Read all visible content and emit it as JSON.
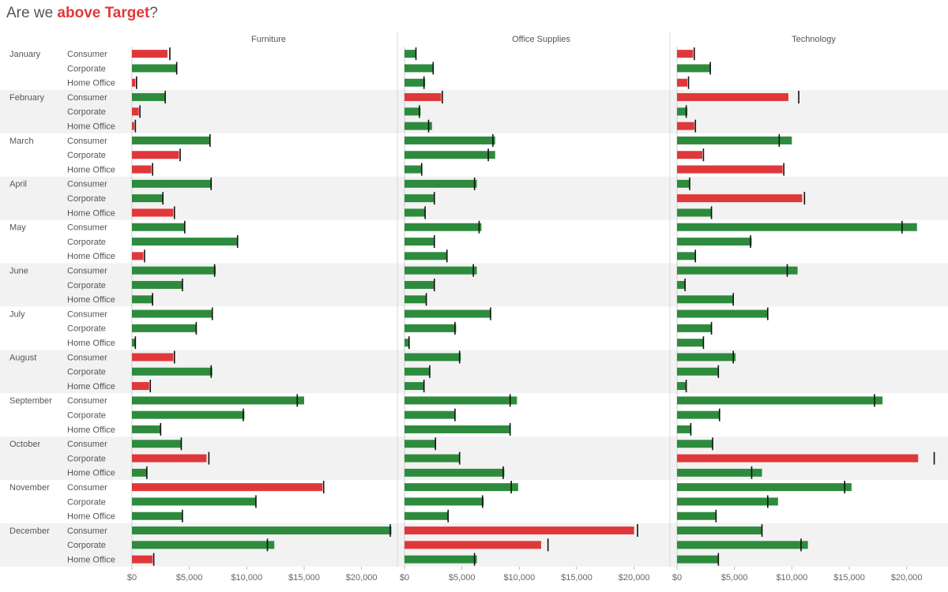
{
  "title": {
    "prefix": "Are we ",
    "highlight": "above Target",
    "suffix": "?"
  },
  "colors": {
    "above": "#2e8b3e",
    "below": "#e0383a",
    "target": "#111111",
    "band": "#f2f2f2",
    "text": "#555555",
    "highlight": "#e0383a"
  },
  "chart_data": {
    "type": "bar",
    "orientation": "horizontal",
    "subtype": "bullet",
    "title": "Are we above Target?",
    "columns": [
      "Furniture",
      "Office Supplies",
      "Technology"
    ],
    "months": [
      "January",
      "February",
      "March",
      "April",
      "May",
      "June",
      "July",
      "August",
      "September",
      "October",
      "November",
      "December"
    ],
    "segments": [
      "Consumer",
      "Corporate",
      "Home Office"
    ],
    "xlim": [
      0,
      22500
    ],
    "x_ticks": [
      0,
      5000,
      10000,
      15000,
      20000
    ],
    "x_tick_labels": [
      "$0",
      "$5,000",
      "$10,000",
      "$15,000",
      "$20,000"
    ],
    "legend": "none",
    "bar_color_rule": "green when actual >= target, red when below",
    "series": [
      {
        "column": "Furniture",
        "actual": [
          [
            3100,
            3900,
            300
          ],
          [
            2900,
            600,
            200
          ],
          [
            6800,
            4100,
            1700
          ],
          [
            6900,
            2700,
            3600
          ],
          [
            4600,
            9200,
            1000
          ],
          [
            7300,
            4400,
            1800
          ],
          [
            7000,
            5600,
            300
          ],
          [
            3600,
            7000,
            1500
          ],
          [
            15000,
            9800,
            2500
          ],
          [
            4300,
            6500,
            1300
          ],
          [
            16600,
            10800,
            4400
          ],
          [
            22600,
            12400,
            1800
          ]
        ],
        "target": [
          [
            3300,
            3900,
            400
          ],
          [
            2900,
            700,
            300
          ],
          [
            6800,
            4200,
            1800
          ],
          [
            6900,
            2700,
            3700
          ],
          [
            4600,
            9200,
            1100
          ],
          [
            7200,
            4400,
            1800
          ],
          [
            7000,
            5600,
            300
          ],
          [
            3700,
            6900,
            1600
          ],
          [
            14400,
            9700,
            2500
          ],
          [
            4300,
            6700,
            1300
          ],
          [
            16700,
            10800,
            4400
          ],
          [
            22500,
            11800,
            1900
          ]
        ]
      },
      {
        "column": "Office Supplies",
        "actual": [
          [
            1000,
            2500,
            1800
          ],
          [
            3200,
            1400,
            2400
          ],
          [
            7900,
            7900,
            1500
          ],
          [
            6300,
            2600,
            1800
          ],
          [
            6700,
            2600,
            3700
          ],
          [
            6300,
            2600,
            1900
          ],
          [
            7500,
            4500,
            400
          ],
          [
            4900,
            2200,
            1700
          ],
          [
            9800,
            4400,
            9200
          ],
          [
            2700,
            4800,
            8700
          ],
          [
            9900,
            6900,
            3800
          ],
          [
            20000,
            11900,
            6300
          ]
        ],
        "target": [
          [
            1000,
            2500,
            1700
          ],
          [
            3300,
            1300,
            2100
          ],
          [
            7700,
            7300,
            1500
          ],
          [
            6100,
            2600,
            1800
          ],
          [
            6500,
            2600,
            3700
          ],
          [
            6000,
            2600,
            1900
          ],
          [
            7500,
            4400,
            400
          ],
          [
            4800,
            2200,
            1700
          ],
          [
            9200,
            4400,
            9200
          ],
          [
            2700,
            4800,
            8600
          ],
          [
            9300,
            6800,
            3800
          ],
          [
            20300,
            12500,
            6100
          ]
        ]
      },
      {
        "column": "Technology",
        "actual": [
          [
            1400,
            2900,
            900
          ],
          [
            9700,
            900,
            1500
          ],
          [
            10000,
            2200,
            9200
          ],
          [
            1100,
            10900,
            3000
          ],
          [
            20900,
            6500,
            1600
          ],
          [
            10500,
            700,
            4900
          ],
          [
            7900,
            3000,
            2300
          ],
          [
            5100,
            3600,
            800
          ],
          [
            17900,
            3700,
            1200
          ],
          [
            3100,
            21000,
            7400
          ],
          [
            15200,
            8800,
            3400
          ],
          [
            7400,
            11400,
            3600
          ]
        ],
        "target": [
          [
            1500,
            2900,
            1000
          ],
          [
            10600,
            800,
            1600
          ],
          [
            8900,
            2300,
            9300
          ],
          [
            1100,
            11100,
            3000
          ],
          [
            19600,
            6400,
            1600
          ],
          [
            9600,
            700,
            4900
          ],
          [
            7900,
            3000,
            2300
          ],
          [
            4900,
            3600,
            800
          ],
          [
            17200,
            3700,
            1200
          ],
          [
            3100,
            22400,
            6500
          ],
          [
            14600,
            7900,
            3400
          ],
          [
            7400,
            10800,
            3600
          ]
        ]
      }
    ]
  }
}
